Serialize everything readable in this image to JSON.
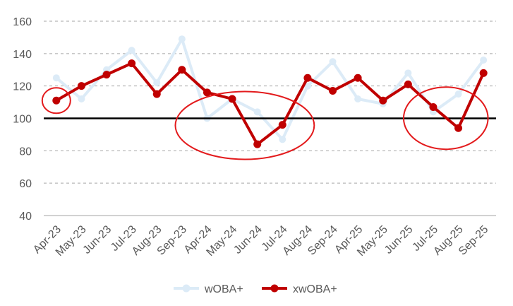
{
  "chart_data": {
    "type": "line",
    "title": "",
    "xlabel": "",
    "ylabel": "",
    "categories": [
      "Apr-23",
      "May-23",
      "Jun-23",
      "Jul-23",
      "Aug-23",
      "Sep-23",
      "Apr-24",
      "May-24",
      "Jun-24",
      "Jul-24",
      "Aug-24",
      "Sep-24",
      "Apr-25",
      "May-25",
      "Jun-25",
      "Jul-25",
      "Aug-25",
      "Sep-25"
    ],
    "series": [
      {
        "name": "wOBA+",
        "color": "#dcebf7",
        "values": [
          125,
          112,
          130,
          142,
          122,
          149,
          100,
          112,
          104,
          87,
          120,
          135,
          112,
          109,
          128,
          104,
          115,
          136
        ]
      },
      {
        "name": "xwOBA+",
        "color": "#c00000",
        "values": [
          111,
          120,
          127,
          134,
          115,
          130,
          116,
          112,
          84,
          96,
          125,
          117,
          125,
          111,
          121,
          107,
          94,
          128
        ]
      }
    ],
    "ylim": [
      40,
      160
    ],
    "yticks": [
      40,
      60,
      80,
      100,
      120,
      140,
      160
    ],
    "reference_line": {
      "value": 100,
      "color": "#000000"
    },
    "annotations": [
      {
        "type": "ellipse",
        "color": "#e31a1c",
        "around": [
          "Apr-23"
        ]
      },
      {
        "type": "ellipse",
        "color": "#e31a1c",
        "around": [
          "Apr-24",
          "May-24",
          "Jun-24",
          "Jul-24"
        ]
      },
      {
        "type": "ellipse",
        "color": "#e31a1c",
        "around": [
          "Jul-25",
          "Aug-25"
        ]
      }
    ],
    "grid": "horizontal dashed",
    "legend": "bottom"
  }
}
